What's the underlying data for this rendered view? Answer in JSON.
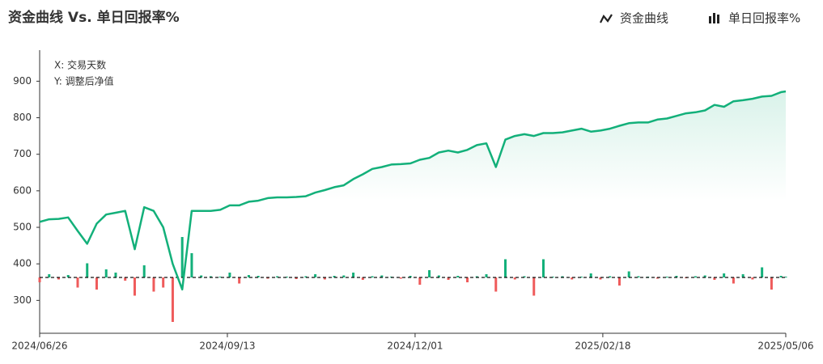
{
  "chart_data": {
    "type": "combo",
    "title": "资金曲线 Vs. 单日回报率%",
    "annotations": [
      "X: 交易天数",
      "Y: 调整后净值"
    ],
    "x": [
      "2024/06/26",
      "2024/06/30",
      "2024/07/04",
      "2024/07/08",
      "2024/07/12",
      "2024/07/16",
      "2024/07/20",
      "2024/07/24",
      "2024/07/28",
      "2024/08/01",
      "2024/08/05",
      "2024/08/09",
      "2024/08/13",
      "2024/08/17",
      "2024/08/21",
      "2024/08/25",
      "2024/08/29",
      "2024/09/02",
      "2024/09/06",
      "2024/09/10",
      "2024/09/14",
      "2024/09/18",
      "2024/09/22",
      "2024/09/26",
      "2024/09/30",
      "2024/10/04",
      "2024/10/08",
      "2024/10/12",
      "2024/10/16",
      "2024/10/20",
      "2024/10/24",
      "2024/10/28",
      "2024/11/01",
      "2024/11/05",
      "2024/11/09",
      "2024/11/13",
      "2024/11/17",
      "2024/11/21",
      "2024/11/25",
      "2024/11/29",
      "2024/12/03",
      "2024/12/07",
      "2024/12/11",
      "2024/12/15",
      "2024/12/19",
      "2024/12/23",
      "2024/12/27",
      "2024/12/31",
      "2025/01/04",
      "2025/01/08",
      "2025/01/12",
      "2025/01/16",
      "2025/01/20",
      "2025/01/24",
      "2025/01/28",
      "2025/02/01",
      "2025/02/05",
      "2025/02/09",
      "2025/02/13",
      "2025/02/17",
      "2025/02/21",
      "2025/02/25",
      "2025/03/01",
      "2025/03/05",
      "2025/03/09",
      "2025/03/13",
      "2025/03/17",
      "2025/03/21",
      "2025/03/25",
      "2025/03/29",
      "2025/04/02",
      "2025/04/06",
      "2025/04/10",
      "2025/04/14",
      "2025/04/18",
      "2025/04/22",
      "2025/04/26",
      "2025/04/30",
      "2025/05/04",
      "2025/05/06"
    ],
    "series": [
      {
        "name": "资金曲线",
        "type": "line",
        "color": "#13b07a",
        "values": [
          515,
          522,
          523,
          527,
          490,
          455,
          510,
          535,
          540,
          545,
          440,
          555,
          545,
          500,
          400,
          330,
          545,
          545,
          545,
          548,
          560,
          560,
          570,
          573,
          580,
          582,
          582,
          583,
          585,
          595,
          602,
          610,
          615,
          632,
          645,
          660,
          665,
          672,
          673,
          675,
          685,
          690,
          705,
          710,
          705,
          712,
          725,
          730,
          665,
          740,
          750,
          755,
          750,
          758,
          758,
          760,
          765,
          770,
          762,
          765,
          770,
          778,
          785,
          787,
          787,
          795,
          798,
          805,
          812,
          815,
          820,
          835,
          830,
          845,
          848,
          852,
          858,
          860,
          870,
          872
        ]
      },
      {
        "name": "单日回报率%",
        "type": "bar",
        "axis": "y2",
        "color": "#13b07a",
        "negative_color": "#ef5b5b",
        "values": [
          -1.2,
          0.8,
          -0.5,
          0.6,
          -2.5,
          3.5,
          -3,
          2,
          1.2,
          -0.8,
          -4.5,
          3,
          -3.5,
          -2.5,
          -11,
          10,
          6,
          0.5,
          0.3,
          0.2,
          1.2,
          -1.5,
          0.6,
          0.4,
          -0.3,
          0.3,
          0.2,
          -0.4,
          0.3,
          0.8,
          -0.5,
          0.4,
          0.5,
          1.2,
          -0.6,
          0.3,
          0.5,
          0.2,
          -0.3,
          0.4,
          -1.8,
          1.8,
          0.5,
          -0.6,
          0.4,
          -1.2,
          0.3,
          0.8,
          -3.5,
          4.5,
          -0.5,
          0.3,
          -4.5,
          4.5,
          0.2,
          0.3,
          -0.5,
          0.2,
          1,
          -0.5,
          0.3,
          -2,
          1.5,
          0.3,
          0.2,
          -0.3,
          0.2,
          0.4,
          -0.2,
          0.3,
          0.5,
          -0.6,
          1,
          -1.5,
          0.8,
          -0.5,
          2.5,
          -3,
          0.4,
          0.2
        ]
      }
    ],
    "ylim": [
      210,
      985
    ],
    "yticks": [
      300,
      400,
      500,
      600,
      700,
      800,
      900
    ],
    "y2lim": [
      -13.8,
      56.2
    ],
    "xticks": [
      "2024/06/26",
      "2024/09/13",
      "2024/12/01",
      "2025/02/18",
      "2025/05/06"
    ]
  }
}
